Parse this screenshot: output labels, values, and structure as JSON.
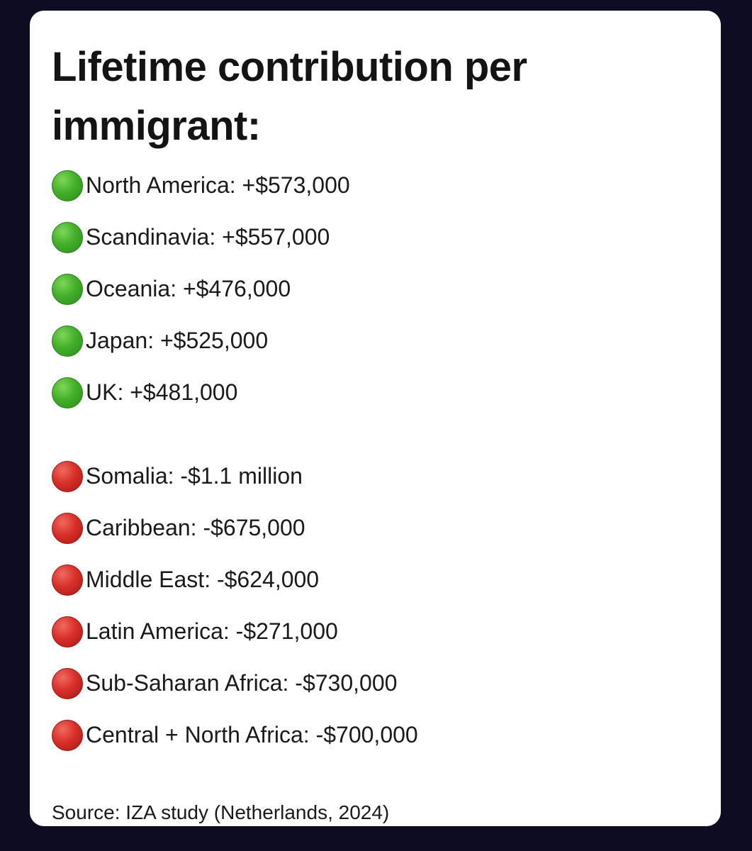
{
  "title": "Lifetime contribution per immigrant:",
  "positive_items": [
    {
      "label": "North America: +$573,000",
      "indicator": "green-circle"
    },
    {
      "label": "Scandinavia: +$557,000",
      "indicator": "green-circle"
    },
    {
      "label": "Oceania: +$476,000",
      "indicator": "green-circle"
    },
    {
      "label": "Japan: +$525,000",
      "indicator": "green-circle"
    },
    {
      "label": "UK: +$481,000",
      "indicator": "green-circle"
    }
  ],
  "negative_items": [
    {
      "label": "Somalia: -$1.1 million",
      "indicator": "red-circle"
    },
    {
      "label": "Caribbean: -$675,000",
      "indicator": "red-circle"
    },
    {
      "label": "Middle East: -$624,000",
      "indicator": "red-circle"
    },
    {
      "label": "Latin America: -$271,000",
      "indicator": "red-circle"
    },
    {
      "label": "Sub-Saharan Africa: -$730,000",
      "indicator": "red-circle"
    },
    {
      "label": "Central + North Africa: -$700,000",
      "indicator": "red-circle"
    }
  ],
  "source": "Source: IZA study (Netherlands, 2024)",
  "colors": {
    "background": "#0d0c22",
    "card": "#ffffff",
    "positive": "#43b02a",
    "negative": "#d8302a"
  }
}
